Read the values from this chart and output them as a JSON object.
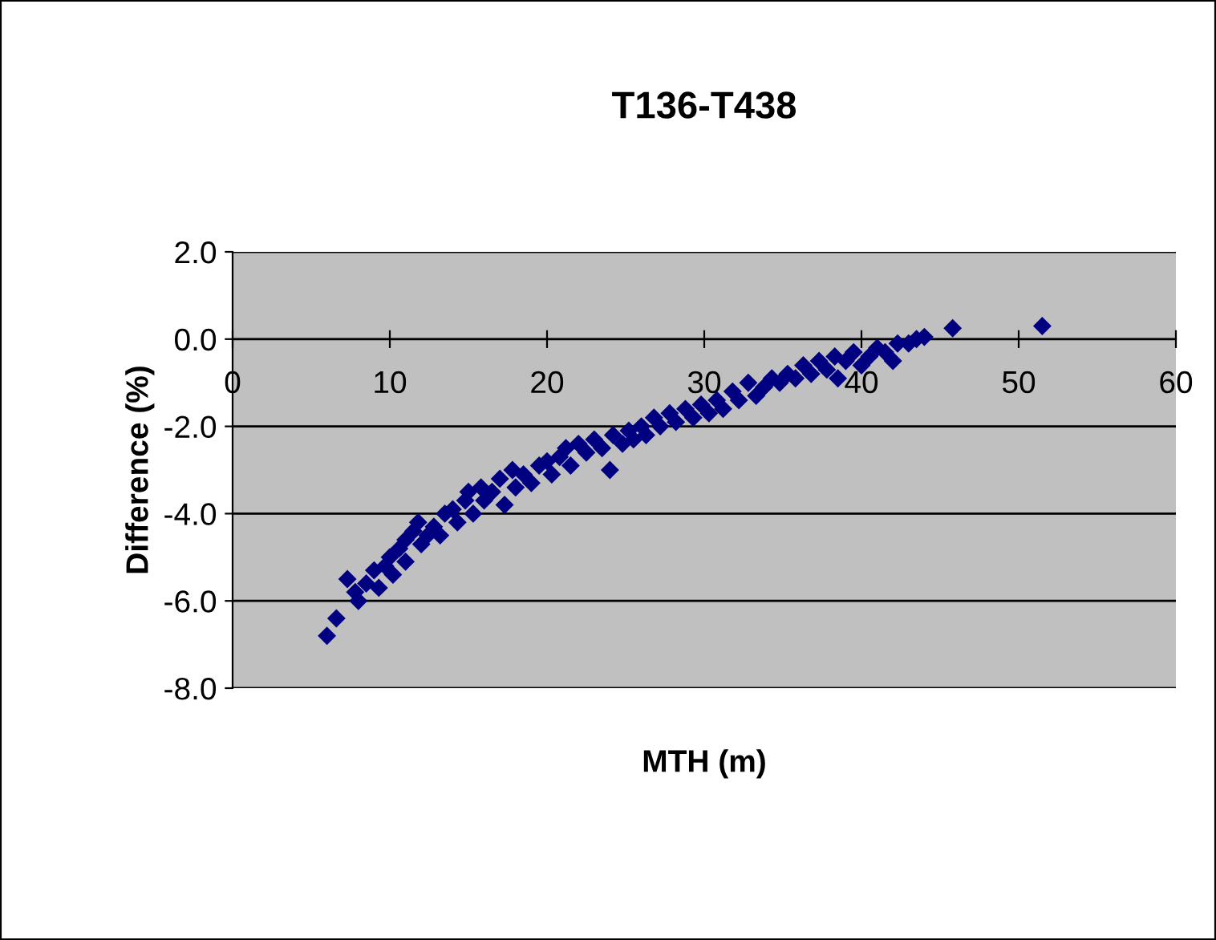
{
  "chart_data": {
    "type": "scatter",
    "title": "T136-T438",
    "xlabel": "MTH (m)",
    "ylabel": "Difference (%)",
    "xlim": [
      0,
      60
    ],
    "xticks": [
      0,
      10,
      20,
      30,
      40,
      50,
      60
    ],
    "ylim": [
      -8,
      2
    ],
    "yticks": [
      {
        "value": -8,
        "label": "-8.0"
      },
      {
        "value": -6,
        "label": "-6.0"
      },
      {
        "value": -4,
        "label": "-4.0"
      },
      {
        "value": -2,
        "label": "-2.0"
      },
      {
        "value": 0,
        "label": "0.0"
      },
      {
        "value": 2,
        "label": "2.0"
      }
    ],
    "grid": "y",
    "legend": false,
    "marker": "diamond",
    "series": [
      {
        "color": "#000080",
        "x": [
          6.0,
          6.6,
          7.3,
          7.8,
          8.0,
          8.5,
          9.0,
          9.3,
          9.7,
          10.0,
          10.2,
          10.6,
          11.0,
          11.0,
          11.5,
          11.8,
          12.0,
          12.4,
          12.8,
          13.2,
          13.5,
          14.0,
          14.3,
          14.8,
          15.0,
          15.3,
          15.8,
          16.0,
          16.5,
          17.0,
          17.3,
          17.8,
          18.0,
          18.5,
          19.0,
          19.5,
          20.0,
          20.3,
          20.8,
          21.2,
          21.5,
          22.0,
          22.5,
          23.0,
          23.5,
          24.0,
          24.2,
          24.8,
          25.2,
          25.5,
          26.0,
          26.3,
          26.8,
          27.2,
          27.8,
          28.2,
          28.8,
          29.3,
          29.8,
          30.3,
          30.8,
          31.2,
          31.8,
          32.2,
          32.8,
          33.3,
          33.8,
          34.3,
          34.8,
          35.3,
          35.8,
          36.3,
          36.8,
          37.3,
          37.8,
          38.3,
          38.5,
          39.0,
          39.5,
          40.0,
          40.5,
          41.0,
          41.5,
          42.0,
          42.3,
          43.0,
          43.5,
          44.0,
          45.8,
          51.5
        ],
        "values": [
          -6.8,
          -6.4,
          -5.5,
          -5.8,
          -6.0,
          -5.6,
          -5.3,
          -5.7,
          -5.2,
          -5.0,
          -5.4,
          -4.8,
          -4.6,
          -5.1,
          -4.4,
          -4.2,
          -4.7,
          -4.5,
          -4.3,
          -4.5,
          -4.0,
          -3.9,
          -4.2,
          -3.7,
          -3.5,
          -4.0,
          -3.4,
          -3.7,
          -3.5,
          -3.2,
          -3.8,
          -3.0,
          -3.4,
          -3.1,
          -3.3,
          -2.9,
          -2.8,
          -3.1,
          -2.7,
          -2.5,
          -2.9,
          -2.4,
          -2.6,
          -2.3,
          -2.5,
          -3.0,
          -2.2,
          -2.4,
          -2.1,
          -2.3,
          -2.0,
          -2.2,
          -1.8,
          -2.0,
          -1.7,
          -1.9,
          -1.6,
          -1.8,
          -1.5,
          -1.7,
          -1.4,
          -1.6,
          -1.2,
          -1.4,
          -1.0,
          -1.3,
          -1.1,
          -0.9,
          -1.0,
          -0.8,
          -0.9,
          -0.6,
          -0.8,
          -0.5,
          -0.7,
          -0.4,
          -0.9,
          -0.5,
          -0.3,
          -0.6,
          -0.4,
          -0.2,
          -0.3,
          -0.5,
          -0.1,
          -0.1,
          0.0,
          0.05,
          0.25,
          0.3
        ]
      }
    ]
  }
}
